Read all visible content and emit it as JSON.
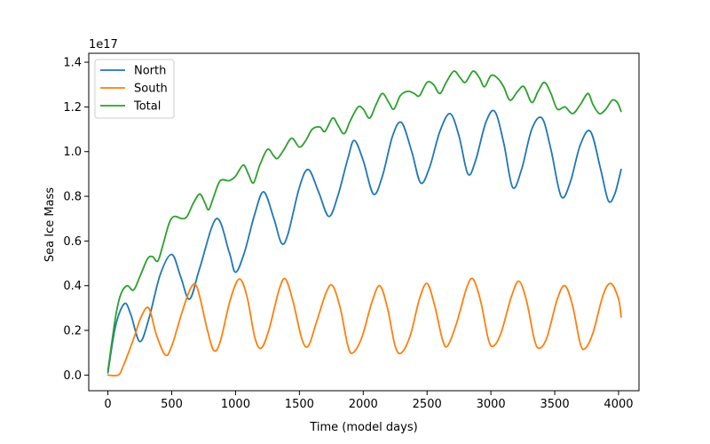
{
  "chart_data": {
    "type": "line",
    "xlabel": "Time (model days)",
    "ylabel": "Sea Ice Mass",
    "y_offset_label": "1e17",
    "xlim": [
      -150,
      4160
    ],
    "ylim": [
      -0.07,
      1.44
    ],
    "xticks": [
      0,
      500,
      1000,
      1500,
      2000,
      2500,
      3000,
      3500,
      4000
    ],
    "xtick_labels": [
      "0",
      "500",
      "1000",
      "1500",
      "2000",
      "2500",
      "3000",
      "3500",
      "4000"
    ],
    "yticks": [
      0.0,
      0.2,
      0.4,
      0.6,
      0.8,
      1.0,
      1.2,
      1.4
    ],
    "ytick_labels": [
      "0.0",
      "0.2",
      "0.4",
      "0.6",
      "0.8",
      "1.0",
      "1.2",
      "1.4"
    ],
    "grid": false,
    "legend_position": "top-left",
    "series": [
      {
        "name": "North",
        "color": "#1f77b4",
        "points": [
          [
            0,
            0.01
          ],
          [
            60,
            0.22
          ],
          [
            130,
            0.32
          ],
          [
            180,
            0.27
          ],
          [
            250,
            0.15
          ],
          [
            320,
            0.25
          ],
          [
            410,
            0.45
          ],
          [
            500,
            0.54
          ],
          [
            570,
            0.44
          ],
          [
            640,
            0.34
          ],
          [
            720,
            0.48
          ],
          [
            850,
            0.7
          ],
          [
            950,
            0.55
          ],
          [
            1000,
            0.46
          ],
          [
            1070,
            0.55
          ],
          [
            1150,
            0.72
          ],
          [
            1220,
            0.82
          ],
          [
            1300,
            0.7
          ],
          [
            1360,
            0.59
          ],
          [
            1410,
            0.63
          ],
          [
            1500,
            0.84
          ],
          [
            1570,
            0.92
          ],
          [
            1650,
            0.82
          ],
          [
            1730,
            0.71
          ],
          [
            1800,
            0.8
          ],
          [
            1880,
            0.97
          ],
          [
            1930,
            1.05
          ],
          [
            2000,
            0.96
          ],
          [
            2080,
            0.81
          ],
          [
            2150,
            0.89
          ],
          [
            2230,
            1.07
          ],
          [
            2300,
            1.13
          ],
          [
            2380,
            1.0
          ],
          [
            2450,
            0.86
          ],
          [
            2520,
            0.93
          ],
          [
            2600,
            1.09
          ],
          [
            2680,
            1.17
          ],
          [
            2750,
            1.07
          ],
          [
            2820,
            0.9
          ],
          [
            2880,
            0.96
          ],
          [
            2960,
            1.13
          ],
          [
            3030,
            1.18
          ],
          [
            3100,
            1.04
          ],
          [
            3170,
            0.84
          ],
          [
            3240,
            0.92
          ],
          [
            3320,
            1.1
          ],
          [
            3400,
            1.15
          ],
          [
            3470,
            1.01
          ],
          [
            3550,
            0.8
          ],
          [
            3620,
            0.86
          ],
          [
            3700,
            1.03
          ],
          [
            3780,
            1.09
          ],
          [
            3860,
            0.92
          ],
          [
            3920,
            0.78
          ],
          [
            3970,
            0.81
          ],
          [
            4020,
            0.92
          ]
        ]
      },
      {
        "name": "South",
        "color": "#ff7f0e",
        "points": [
          [
            0,
            0.0
          ],
          [
            80,
            0.0
          ],
          [
            120,
            0.04
          ],
          [
            200,
            0.16
          ],
          [
            260,
            0.26
          ],
          [
            320,
            0.3
          ],
          [
            380,
            0.18
          ],
          [
            450,
            0.09
          ],
          [
            500,
            0.13
          ],
          [
            580,
            0.28
          ],
          [
            650,
            0.39
          ],
          [
            700,
            0.39
          ],
          [
            780,
            0.2
          ],
          [
            830,
            0.11
          ],
          [
            880,
            0.15
          ],
          [
            960,
            0.34
          ],
          [
            1030,
            0.43
          ],
          [
            1090,
            0.35
          ],
          [
            1150,
            0.17
          ],
          [
            1200,
            0.12
          ],
          [
            1260,
            0.2
          ],
          [
            1340,
            0.38
          ],
          [
            1390,
            0.43
          ],
          [
            1450,
            0.33
          ],
          [
            1520,
            0.16
          ],
          [
            1570,
            0.13
          ],
          [
            1630,
            0.23
          ],
          [
            1710,
            0.37
          ],
          [
            1760,
            0.4
          ],
          [
            1820,
            0.3
          ],
          [
            1880,
            0.13
          ],
          [
            1920,
            0.1
          ],
          [
            1990,
            0.17
          ],
          [
            2070,
            0.33
          ],
          [
            2130,
            0.4
          ],
          [
            2190,
            0.3
          ],
          [
            2250,
            0.13
          ],
          [
            2300,
            0.1
          ],
          [
            2370,
            0.18
          ],
          [
            2440,
            0.34
          ],
          [
            2500,
            0.41
          ],
          [
            2560,
            0.31
          ],
          [
            2620,
            0.16
          ],
          [
            2660,
            0.13
          ],
          [
            2730,
            0.23
          ],
          [
            2810,
            0.39
          ],
          [
            2860,
            0.43
          ],
          [
            2920,
            0.33
          ],
          [
            2980,
            0.16
          ],
          [
            3020,
            0.13
          ],
          [
            3080,
            0.19
          ],
          [
            3160,
            0.35
          ],
          [
            3220,
            0.42
          ],
          [
            3280,
            0.33
          ],
          [
            3340,
            0.16
          ],
          [
            3380,
            0.12
          ],
          [
            3440,
            0.17
          ],
          [
            3520,
            0.34
          ],
          [
            3580,
            0.4
          ],
          [
            3640,
            0.31
          ],
          [
            3700,
            0.14
          ],
          [
            3740,
            0.12
          ],
          [
            3800,
            0.19
          ],
          [
            3880,
            0.36
          ],
          [
            3940,
            0.41
          ],
          [
            4000,
            0.34
          ],
          [
            4020,
            0.26
          ]
        ]
      },
      {
        "name": "Total",
        "color": "#2ca02c",
        "points": [
          [
            0,
            0.02
          ],
          [
            60,
            0.26
          ],
          [
            100,
            0.36
          ],
          [
            150,
            0.4
          ],
          [
            200,
            0.38
          ],
          [
            250,
            0.44
          ],
          [
            310,
            0.52
          ],
          [
            350,
            0.53
          ],
          [
            390,
            0.51
          ],
          [
            430,
            0.58
          ],
          [
            480,
            0.68
          ],
          [
            520,
            0.71
          ],
          [
            580,
            0.7
          ],
          [
            620,
            0.71
          ],
          [
            670,
            0.77
          ],
          [
            720,
            0.81
          ],
          [
            760,
            0.77
          ],
          [
            790,
            0.74
          ],
          [
            830,
            0.8
          ],
          [
            880,
            0.87
          ],
          [
            950,
            0.87
          ],
          [
            1000,
            0.89
          ],
          [
            1060,
            0.94
          ],
          [
            1100,
            0.9
          ],
          [
            1140,
            0.86
          ],
          [
            1190,
            0.94
          ],
          [
            1250,
            1.01
          ],
          [
            1300,
            0.98
          ],
          [
            1330,
            0.97
          ],
          [
            1380,
            1.01
          ],
          [
            1440,
            1.06
          ],
          [
            1500,
            1.02
          ],
          [
            1550,
            1.05
          ],
          [
            1600,
            1.1
          ],
          [
            1660,
            1.11
          ],
          [
            1700,
            1.09
          ],
          [
            1760,
            1.15
          ],
          [
            1800,
            1.12
          ],
          [
            1850,
            1.08
          ],
          [
            1900,
            1.14
          ],
          [
            1960,
            1.2
          ],
          [
            2000,
            1.19
          ],
          [
            2050,
            1.15
          ],
          [
            2100,
            1.21
          ],
          [
            2150,
            1.26
          ],
          [
            2200,
            1.22
          ],
          [
            2240,
            1.19
          ],
          [
            2290,
            1.25
          ],
          [
            2350,
            1.27
          ],
          [
            2400,
            1.26
          ],
          [
            2440,
            1.25
          ],
          [
            2500,
            1.31
          ],
          [
            2550,
            1.3
          ],
          [
            2600,
            1.26
          ],
          [
            2650,
            1.31
          ],
          [
            2710,
            1.36
          ],
          [
            2760,
            1.33
          ],
          [
            2800,
            1.31
          ],
          [
            2860,
            1.36
          ],
          [
            2910,
            1.33
          ],
          [
            2950,
            1.29
          ],
          [
            3000,
            1.34
          ],
          [
            3050,
            1.33
          ],
          [
            3100,
            1.29
          ],
          [
            3150,
            1.23
          ],
          [
            3210,
            1.27
          ],
          [
            3260,
            1.29
          ],
          [
            3320,
            1.22
          ],
          [
            3370,
            1.27
          ],
          [
            3420,
            1.31
          ],
          [
            3470,
            1.26
          ],
          [
            3520,
            1.19
          ],
          [
            3580,
            1.2
          ],
          [
            3640,
            1.17
          ],
          [
            3700,
            1.21
          ],
          [
            3760,
            1.26
          ],
          [
            3800,
            1.21
          ],
          [
            3850,
            1.17
          ],
          [
            3900,
            1.19
          ],
          [
            3950,
            1.23
          ],
          [
            3990,
            1.22
          ],
          [
            4020,
            1.18
          ]
        ]
      }
    ]
  }
}
